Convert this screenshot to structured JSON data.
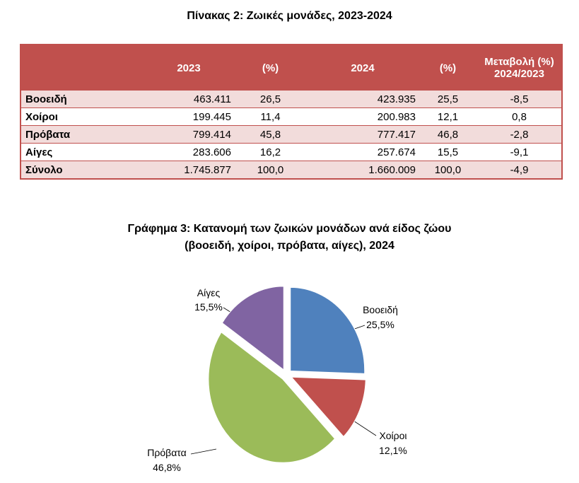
{
  "table": {
    "title": "Πίνακας 2: Ζωικές μονάδες, 2023-2024",
    "headers": [
      "",
      "2023",
      "(%)",
      "2024",
      "(%)",
      "Μεταβολή (%)",
      "2024/2023"
    ],
    "rows": [
      {
        "label": "Βοοειδή",
        "v2023": "463.411",
        "p2023": "26,5",
        "v2024": "423.935",
        "p2024": "25,5",
        "change": "-8,5"
      },
      {
        "label": "Χοίροι",
        "v2023": "199.445",
        "p2023": "11,4",
        "v2024": "200.983",
        "p2024": "12,1",
        "change": "0,8"
      },
      {
        "label": "Πρόβατα",
        "v2023": "799.414",
        "p2023": "45,8",
        "v2024": "777.417",
        "p2024": "46,8",
        "change": "-2,8"
      },
      {
        "label": "Αίγες",
        "v2023": "283.606",
        "p2023": "16,2",
        "v2024": "257.674",
        "p2024": "15,5",
        "change": "-9,1"
      },
      {
        "label": "Σύνολο",
        "v2023": "1.745.877",
        "p2023": "100,0",
        "v2024": "1.660.009",
        "p2024": "100,0",
        "change": "-4,9"
      }
    ],
    "header_color": "#c0504d",
    "stripe_color": "#f2dcdb"
  },
  "chart_title_line1": "Γράφημα 3: Κατανομή των ζωικών μονάδων ανά είδος ζώου",
  "chart_title_line2": "(βοοειδή, χοίροι, πρόβατα, αίγες), 2024",
  "chart_data": {
    "type": "pie",
    "exploded": true,
    "slices": [
      {
        "name": "Βοοειδή",
        "label": "25,5%",
        "value": 25.5,
        "color": "#4f81bd"
      },
      {
        "name": "Χοίροι",
        "label": "12,1%",
        "value": 12.1,
        "color": "#c0504d"
      },
      {
        "name": "Πρόβατα",
        "label": "46,8%",
        "value": 46.8,
        "color": "#9bbb59"
      },
      {
        "name": "Αίγες",
        "label": "15,5%",
        "value": 15.5,
        "color": "#8064a2"
      }
    ]
  }
}
